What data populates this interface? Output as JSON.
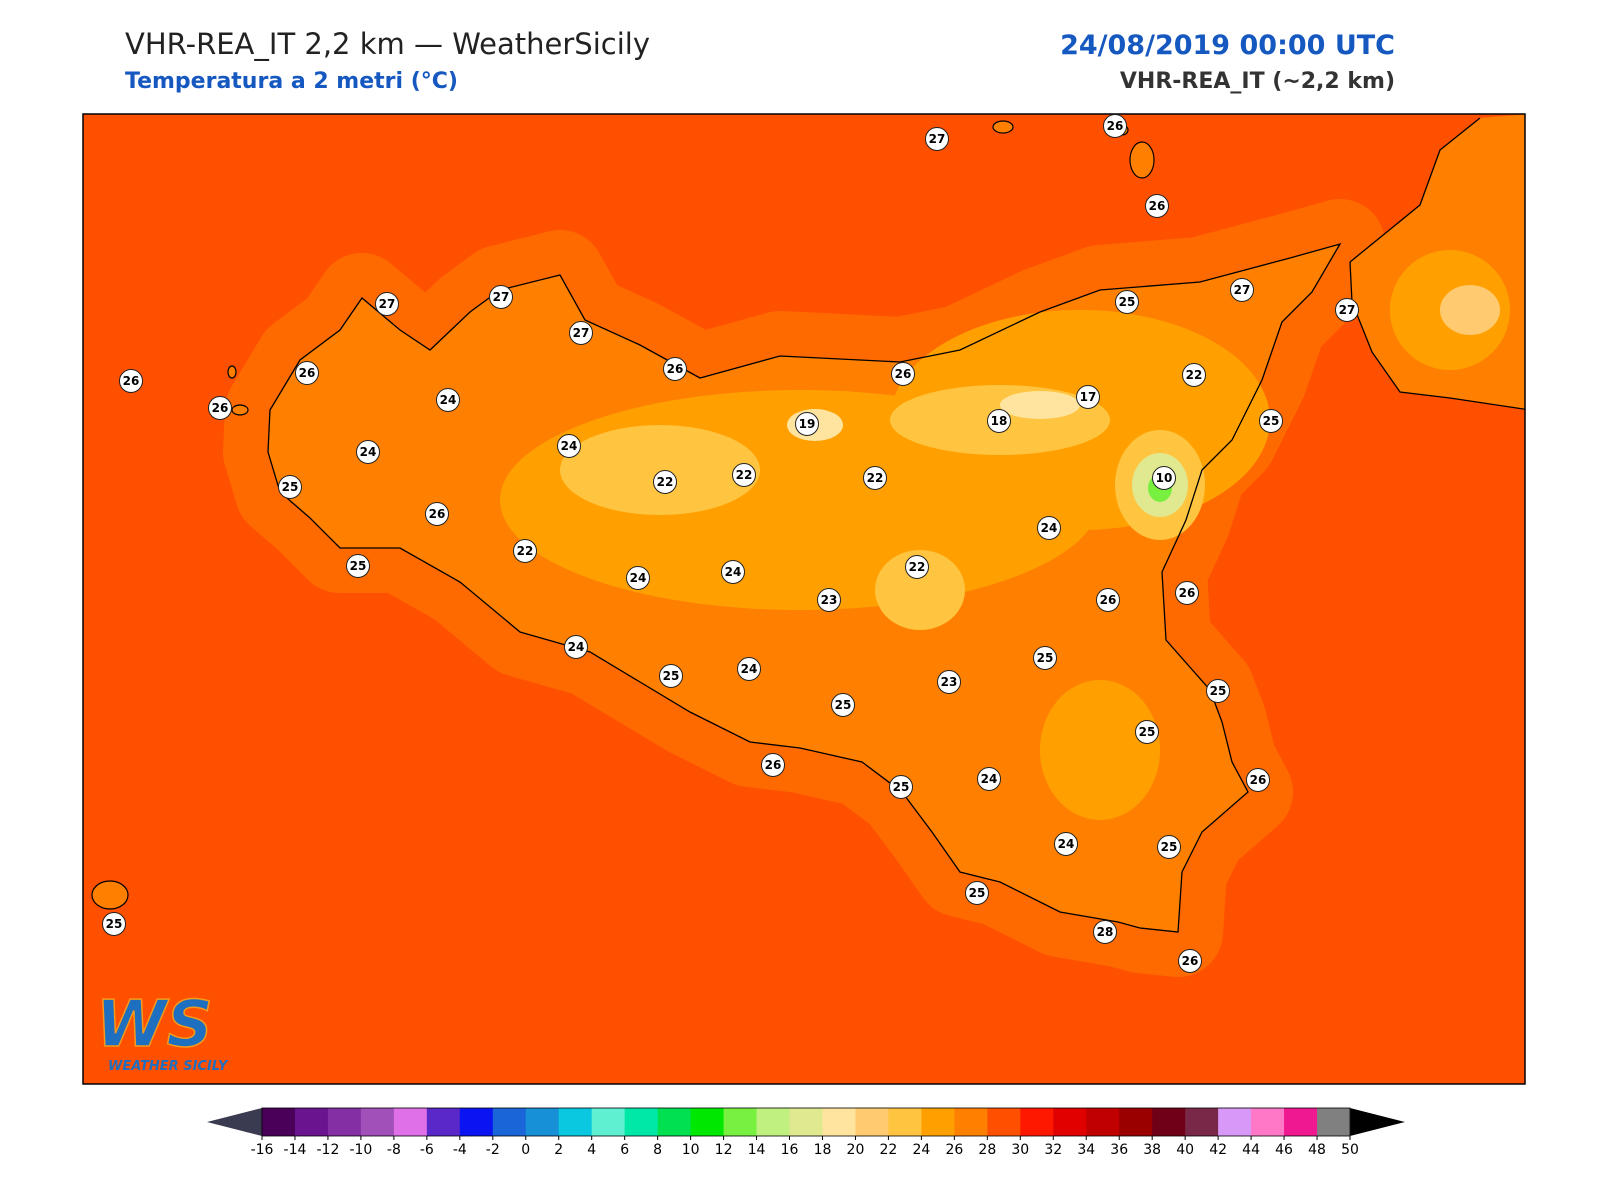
{
  "header": {
    "title": "VHR-REA_IT 2,2 km — WeatherSicily",
    "subtitle": "Temperatura a 2 metri (°C)",
    "datetime": "24/08/2019 00:00 UTC",
    "model": "VHR-REA_IT (~2,2 km)"
  },
  "map": {
    "stations": [
      27,
      26,
      26,
      27,
      27,
      27,
      26,
      26,
      26,
      24,
      24,
      24,
      26,
      26,
      25,
      27,
      27,
      22,
      17,
      18,
      19,
      25,
      10,
      25,
      26,
      22,
      22,
      22,
      22,
      25,
      24,
      24,
      23,
      22,
      24,
      26,
      26,
      24,
      25,
      24,
      25,
      23,
      25,
      25,
      25,
      26,
      25,
      24,
      26,
      24,
      25,
      25,
      28,
      26,
      25
    ],
    "sea_color": "#ff5000",
    "land_color": "#ff8000"
  },
  "colorbar": {
    "ticks": [
      -16,
      -14,
      -12,
      -10,
      -8,
      -6,
      -4,
      -2,
      0,
      2,
      4,
      6,
      8,
      10,
      12,
      14,
      16,
      18,
      20,
      22,
      24,
      26,
      28,
      30,
      32,
      34,
      36,
      38,
      40,
      42,
      44,
      46,
      48,
      50
    ],
    "colors": [
      "#4a0058",
      "#6a1490",
      "#8430a4",
      "#a050b8",
      "#e070e8",
      "#5a28c8",
      "#0a14f0",
      "#1a66d8",
      "#1890d8",
      "#0ac8e0",
      "#5ef0d0",
      "#00e8a8",
      "#00e050",
      "#00e800",
      "#78f040",
      "#c0f080",
      "#e0e890",
      "#ffe4a0",
      "#ffca70",
      "#ffc440",
      "#ffa000",
      "#ff8000",
      "#ff5000",
      "#ff1800",
      "#e00000",
      "#c00000",
      "#9a0000",
      "#700018",
      "#7a2848",
      "#d898f8",
      "#ff78c8",
      "#f01890",
      "#808080",
      "#383838"
    ],
    "under_color": "#3a3a50",
    "over_color": "#000000"
  },
  "logo": {
    "mark": "WS",
    "name": "WEATHER SICILY"
  }
}
